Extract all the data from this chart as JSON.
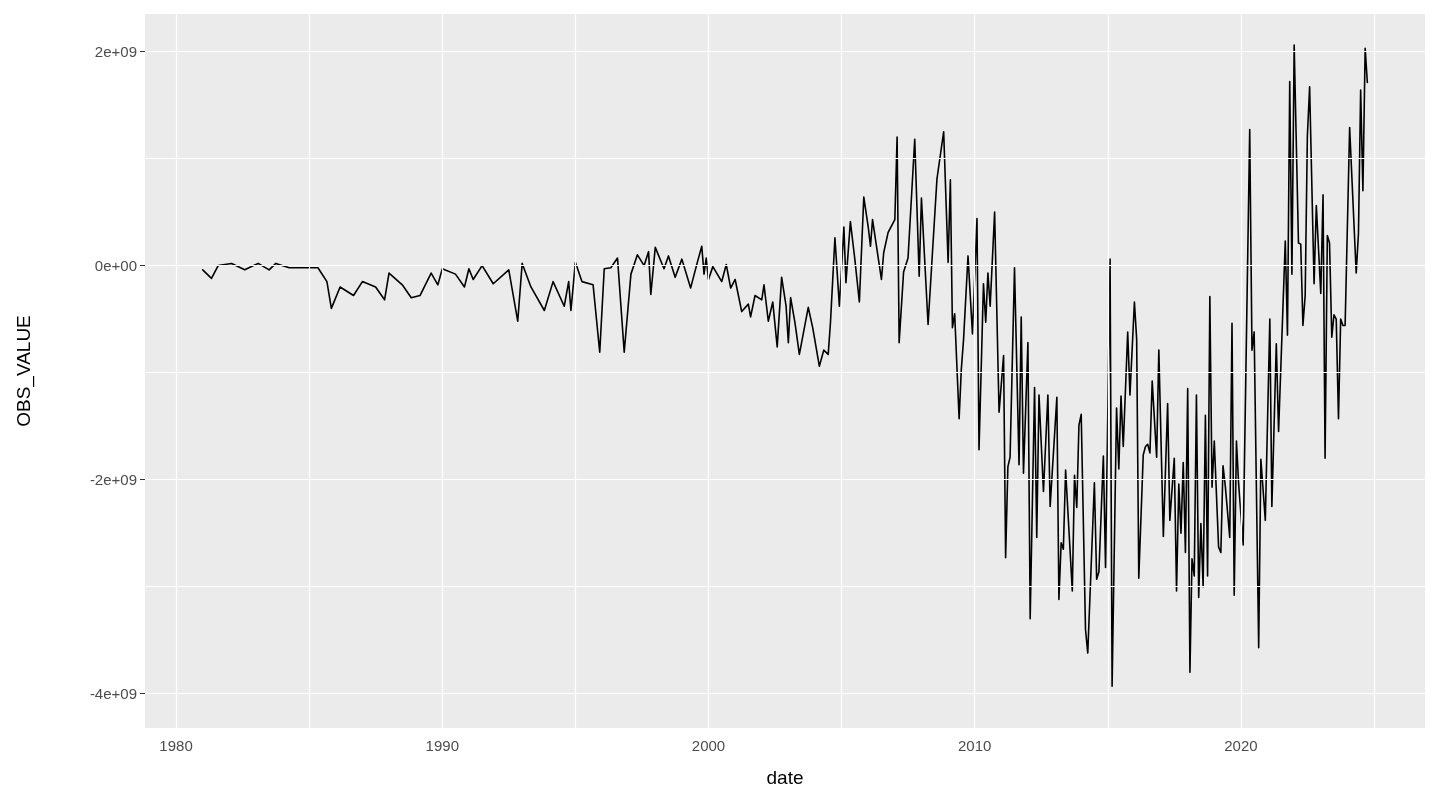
{
  "chart_data": {
    "type": "line",
    "xlabel": "date",
    "ylabel": "OBS_VALUE",
    "xlim": [
      "1978-11",
      "2026-12"
    ],
    "ylim": [
      -4320000000.0,
      2350000000.0
    ],
    "xticks": [
      "1980",
      {
        "value": "1985",
        "label": null
      },
      "1990",
      {
        "value": "1995",
        "label": null
      },
      "2000",
      {
        "value": "2005",
        "label": null
      },
      "2010",
      {
        "value": "2015",
        "label": null
      },
      "2020",
      {
        "value": "2025",
        "label": null
      }
    ],
    "yticks": [
      {
        "value": -4000000000.0,
        "label": "-4e+09"
      },
      {
        "value": -3000000000.0,
        "label": null
      },
      {
        "value": -2000000000.0,
        "label": "-2e+09"
      },
      {
        "value": -1000000000.0,
        "label": null
      },
      {
        "value": 0,
        "label": "0e+00"
      },
      {
        "value": 1000000000.0,
        "label": null
      },
      {
        "value": 2000000000.0,
        "label": "2e+09"
      }
    ],
    "grid": true,
    "marker": "none",
    "line_style": "solid",
    "series": [
      {
        "color": "#000000",
        "x": [
          "1981-01",
          "1981-05",
          "1981-08",
          "1982-02",
          "1982-08",
          "1983-02",
          "1983-07",
          "1983-10",
          "1984-04",
          "1985-05",
          "1985-09",
          "1985-11",
          "1986-03",
          "1986-09",
          "1987-01",
          "1987-07",
          "1987-11",
          "1988-01",
          "1988-07",
          "1988-11",
          "1989-03",
          "1989-08",
          "1989-11",
          "1990-01",
          "1990-07",
          "1990-11",
          "1991-01",
          "1991-03",
          "1991-07",
          "1991-12",
          "1992-07",
          "1992-11",
          "1993-01",
          "1993-05",
          "1993-11",
          "1994-03",
          "1994-08",
          "1994-10",
          "1994-11",
          "1995-01",
          "1995-04",
          "1995-09",
          "1995-12",
          "1996-02",
          "1996-05",
          "1996-08",
          "1996-11",
          "1997-02",
          "1997-05",
          "1997-08",
          "1997-10",
          "1997-11",
          "1998-01",
          "1998-05",
          "1998-07",
          "1998-10",
          "1999-01",
          "1999-05",
          "1999-08",
          "1999-10",
          "1999-11",
          "1999-12",
          "2000-01",
          "2000-03",
          "2000-07",
          "2000-09",
          "2000-11",
          "2001-01",
          "2001-04",
          "2001-07",
          "2001-08",
          "2001-10",
          "2002-01",
          "2002-02",
          "2002-04",
          "2002-06",
          "2002-08",
          "2002-10",
          "2002-12",
          "2003-01",
          "2003-02",
          "2003-04",
          "2003-06",
          "2003-10",
          "2003-12",
          "2004-03",
          "2004-05",
          "2004-07",
          "2004-08",
          "2004-10",
          "2004-12",
          "2005-02",
          "2005-03",
          "2005-05",
          "2005-07",
          "2005-09",
          "2005-11",
          "2006-01",
          "2006-02",
          "2006-03",
          "2006-07",
          "2006-08",
          "2006-10",
          "2007-01",
          "2007-02",
          "2007-03",
          "2007-05",
          "2007-07",
          "2007-10",
          "2007-12",
          "2008-01",
          "2008-04",
          "2008-08",
          "2008-11",
          "2009-01",
          "2009-02",
          "2009-03",
          "2009-04",
          "2009-06",
          "2009-07",
          "2009-08",
          "2009-10",
          "2009-12",
          "2010-02",
          "2010-03",
          "2010-05",
          "2010-06",
          "2010-07",
          "2010-08",
          "2010-10",
          "2010-12",
          "2011-02",
          "2011-03",
          "2011-04",
          "2011-05",
          "2011-07",
          "2011-09",
          "2011-10",
          "2011-11",
          "2012-01",
          "2012-02",
          "2012-04",
          "2012-05",
          "2012-06",
          "2012-08",
          "2012-10",
          "2012-11",
          "2013-02",
          "2013-03",
          "2013-04",
          "2013-05",
          "2013-06",
          "2013-09",
          "2013-10",
          "2013-11",
          "2013-12",
          "2014-01",
          "2014-03",
          "2014-04",
          "2014-07",
          "2014-08",
          "2014-09",
          "2014-11",
          "2014-12",
          "2015-02",
          "2015-03",
          "2015-05",
          "2015-06",
          "2015-07",
          "2015-08",
          "2015-10",
          "2015-11",
          "2016-01",
          "2016-02",
          "2016-03",
          "2016-05",
          "2016-06",
          "2016-07",
          "2016-08",
          "2016-09",
          "2016-11",
          "2016-12",
          "2017-02",
          "2017-04",
          "2017-05",
          "2017-07",
          "2017-08",
          "2017-09",
          "2017-10",
          "2017-11",
          "2017-12",
          "2018-01",
          "2018-02",
          "2018-03",
          "2018-04",
          "2018-05",
          "2018-06",
          "2018-07",
          "2018-08",
          "2018-09",
          "2018-10",
          "2018-11",
          "2018-12",
          "2019-01",
          "2019-03",
          "2019-04",
          "2019-05",
          "2019-06",
          "2019-08",
          "2019-09",
          "2019-10",
          "2019-11",
          "2019-12",
          "2020-02",
          "2020-05",
          "2020-06",
          "2020-07",
          "2020-09",
          "2020-10",
          "2020-12",
          "2021-02",
          "2021-03",
          "2021-05",
          "2021-06",
          "2021-09",
          "2021-10",
          "2021-11",
          "2021-12",
          "2022-01",
          "2022-03",
          "2022-04",
          "2022-05",
          "2022-06",
          "2022-07",
          "2022-08",
          "2022-10",
          "2022-11",
          "2023-01",
          "2023-02",
          "2023-03",
          "2023-04",
          "2023-05",
          "2023-06",
          "2023-07",
          "2023-08",
          "2023-09",
          "2023-10",
          "2023-11",
          "2023-12",
          "2024-02",
          "2024-05",
          "2024-06",
          "2024-07",
          "2024-08",
          "2024-09",
          "2024-10"
        ],
        "values": [
          -40000000.0,
          -120000000.0,
          0.0,
          20000000.0,
          -40000000.0,
          20000000.0,
          -40000000.0,
          20000000.0,
          -20000000.0,
          -20000000.0,
          -150000000.0,
          -400000000.0,
          -200000000.0,
          -280000000.0,
          -150000000.0,
          -200000000.0,
          -320000000.0,
          -70000000.0,
          -180000000.0,
          -300000000.0,
          -280000000.0,
          -70000000.0,
          -180000000.0,
          -30000000.0,
          -80000000.0,
          -200000000.0,
          -30000000.0,
          -130000000.0,
          0.0,
          -170000000.0,
          -40000000.0,
          -520000000.0,
          20000000.0,
          -200000000.0,
          -420000000.0,
          -150000000.0,
          -380000000.0,
          -150000000.0,
          -420000000.0,
          30000000.0,
          -150000000.0,
          -180000000.0,
          -810000000.0,
          -30000000.0,
          -20000000.0,
          70000000.0,
          -810000000.0,
          -80000000.0,
          100000000.0,
          0.0,
          130000000.0,
          -270000000.0,
          170000000.0,
          -30000000.0,
          90000000.0,
          -110000000.0,
          60000000.0,
          -210000000.0,
          30000000.0,
          180000000.0,
          -80000000.0,
          70000000.0,
          -130000000.0,
          -10000000.0,
          -150000000.0,
          10000000.0,
          -210000000.0,
          -130000000.0,
          -430000000.0,
          -360000000.0,
          -480000000.0,
          -280000000.0,
          -320000000.0,
          -180000000.0,
          -520000000.0,
          -340000000.0,
          -760000000.0,
          -110000000.0,
          -380000000.0,
          -720000000.0,
          -300000000.0,
          -530000000.0,
          -830000000.0,
          -390000000.0,
          -580000000.0,
          -940000000.0,
          -790000000.0,
          -830000000.0,
          -530000000.0,
          260000000.0,
          -380000000.0,
          360000000.0,
          -160000000.0,
          410000000.0,
          60000000.0,
          -340000000.0,
          640000000.0,
          360000000.0,
          180000000.0,
          430000000.0,
          -130000000.0,
          120000000.0,
          310000000.0,
          430000000.0,
          1200000000.0,
          -720000000.0,
          -60000000.0,
          70000000.0,
          1180000000.0,
          -100000000.0,
          630000000.0,
          -550000000.0,
          810000000.0,
          1250000000.0,
          30000000.0,
          800000000.0,
          -580000000.0,
          -450000000.0,
          -1430000000.0,
          -970000000.0,
          -690000000.0,
          90000000.0,
          -640000000.0,
          440000000.0,
          -1720000000.0,
          -170000000.0,
          -530000000.0,
          -70000000.0,
          -380000000.0,
          500000000.0,
          -1370000000.0,
          -840000000.0,
          -2730000000.0,
          -1880000000.0,
          -1790000000.0,
          -20000000.0,
          -1860000000.0,
          -480000000.0,
          -1940000000.0,
          -720000000.0,
          -3300000000.0,
          -1140000000.0,
          -2540000000.0,
          -1210000000.0,
          -2110000000.0,
          -1210000000.0,
          -2250000000.0,
          -1230000000.0,
          -3120000000.0,
          -2590000000.0,
          -2650000000.0,
          -1910000000.0,
          -3040000000.0,
          -1960000000.0,
          -2260000000.0,
          -1490000000.0,
          -1390000000.0,
          -3400000000.0,
          -3620000000.0,
          -2030000000.0,
          -2930000000.0,
          -2860000000.0,
          -1780000000.0,
          -2820000000.0,
          60000000.0,
          -3930000000.0,
          -1330000000.0,
          -1900000000.0,
          -1220000000.0,
          -1690000000.0,
          -620000000.0,
          -1210000000.0,
          -340000000.0,
          -690000000.0,
          -2920000000.0,
          -1770000000.0,
          -1690000000.0,
          -1670000000.0,
          -1750000000.0,
          -1080000000.0,
          -1790000000.0,
          -790000000.0,
          -2530000000.0,
          -1290000000.0,
          -2380000000.0,
          -1800000000.0,
          -3040000000.0,
          -2040000000.0,
          -2500000000.0,
          -1840000000.0,
          -2680000000.0,
          -1150000000.0,
          -3800000000.0,
          -2740000000.0,
          -2900000000.0,
          -1210000000.0,
          -3100000000.0,
          -2410000000.0,
          -3000000000.0,
          -1400000000.0,
          -2900000000.0,
          -290000000.0,
          -2070000000.0,
          -1640000000.0,
          -2630000000.0,
          -2680000000.0,
          -1870000000.0,
          -2060000000.0,
          -2540000000.0,
          -540000000.0,
          -3080000000.0,
          -1640000000.0,
          -2040000000.0,
          -2610000000.0,
          1270000000.0,
          -790000000.0,
          -620000000.0,
          -3570000000.0,
          -1810000000.0,
          -2380000000.0,
          -500000000.0,
          -2250000000.0,
          -730000000.0,
          -1550000000.0,
          230000000.0,
          -650000000.0,
          1720000000.0,
          -80000000.0,
          2060000000.0,
          210000000.0,
          200000000.0,
          -560000000.0,
          -280000000.0,
          1210000000.0,
          1670000000.0,
          -170000000.0,
          560000000.0,
          -260000000.0,
          660000000.0,
          -1800000000.0,
          280000000.0,
          210000000.0,
          -670000000.0,
          -460000000.0,
          -500000000.0,
          -1430000000.0,
          -500000000.0,
          -560000000.0,
          -560000000.0,
          1290000000.0,
          -70000000.0,
          300000000.0,
          1640000000.0,
          700000000.0,
          2030000000.0,
          1710000000.0
        ]
      }
    ]
  }
}
